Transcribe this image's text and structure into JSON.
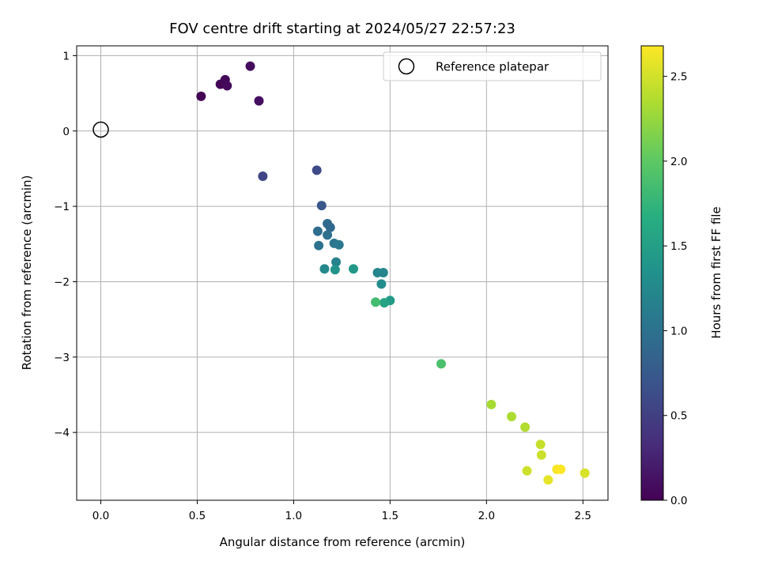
{
  "chart_data": {
    "type": "scatter",
    "title": "FOV centre drift starting at 2024/05/27 22:57:23",
    "xlabel": "Angular distance from reference (arcmin)",
    "ylabel": "Rotation from reference (arcmin)",
    "xlim": [
      -0.125,
      2.63
    ],
    "ylim": [
      -4.9,
      1.13
    ],
    "xticks": [
      0.0,
      0.5,
      1.0,
      1.5,
      2.0,
      2.5
    ],
    "xtick_labels": [
      "0.0",
      "0.5",
      "1.0",
      "1.5",
      "2.0",
      "2.5"
    ],
    "yticks": [
      1,
      0,
      -1,
      -2,
      -3,
      -4
    ],
    "ytick_labels": [
      "1",
      "0",
      "−1",
      "−2",
      "−3",
      "−4"
    ],
    "grid": true,
    "legend": {
      "position": "top-right",
      "entries": [
        "Reference platepar"
      ]
    },
    "reference_point": {
      "x": 0.0,
      "y": 0.0,
      "label": "Reference platepar"
    },
    "colorbar": {
      "label": "Hours from first FF file",
      "min": 0.0,
      "max": 2.68,
      "colormap": "viridis",
      "ticks": [
        0.0,
        0.5,
        1.0,
        1.5,
        2.0,
        2.5
      ],
      "tick_labels": [
        "0.0",
        "0.5",
        "1.0",
        "1.5",
        "2.0",
        "2.5"
      ]
    },
    "points": [
      {
        "x": 0.52,
        "y": 0.46,
        "c": 0.0
      },
      {
        "x": 0.62,
        "y": 0.62,
        "c": 0.03
      },
      {
        "x": 0.645,
        "y": 0.68,
        "c": 0.05
      },
      {
        "x": 0.655,
        "y": 0.6,
        "c": 0.06
      },
      {
        "x": 0.775,
        "y": 0.86,
        "c": 0.08
      },
      {
        "x": 0.82,
        "y": 0.4,
        "c": 0.1
      },
      {
        "x": 0.84,
        "y": -0.6,
        "c": 0.55
      },
      {
        "x": 1.12,
        "y": -0.52,
        "c": 0.6
      },
      {
        "x": 1.145,
        "y": -0.99,
        "c": 0.72
      },
      {
        "x": 1.125,
        "y": -1.33,
        "c": 0.95
      },
      {
        "x": 1.13,
        "y": -1.52,
        "c": 1.0
      },
      {
        "x": 1.175,
        "y": -1.23,
        "c": 0.92
      },
      {
        "x": 1.19,
        "y": -1.28,
        "c": 0.9
      },
      {
        "x": 1.175,
        "y": -1.38,
        "c": 0.98
      },
      {
        "x": 1.21,
        "y": -1.49,
        "c": 1.05
      },
      {
        "x": 1.235,
        "y": -1.51,
        "c": 1.08
      },
      {
        "x": 1.22,
        "y": -1.74,
        "c": 1.18
      },
      {
        "x": 1.16,
        "y": -1.83,
        "c": 1.25
      },
      {
        "x": 1.215,
        "y": -1.84,
        "c": 1.38
      },
      {
        "x": 1.31,
        "y": -1.83,
        "c": 1.42
      },
      {
        "x": 1.435,
        "y": -1.88,
        "c": 1.22
      },
      {
        "x": 1.465,
        "y": -1.88,
        "c": 1.2
      },
      {
        "x": 1.455,
        "y": -2.03,
        "c": 1.3
      },
      {
        "x": 1.5,
        "y": -2.25,
        "c": 1.45
      },
      {
        "x": 1.47,
        "y": -2.28,
        "c": 1.55
      },
      {
        "x": 1.425,
        "y": -2.27,
        "c": 1.85
      },
      {
        "x": 1.765,
        "y": -3.09,
        "c": 1.9
      },
      {
        "x": 2.025,
        "y": -3.63,
        "c": 2.32
      },
      {
        "x": 2.13,
        "y": -3.79,
        "c": 2.34
      },
      {
        "x": 2.2,
        "y": -3.93,
        "c": 2.36
      },
      {
        "x": 2.28,
        "y": -4.16,
        "c": 2.45
      },
      {
        "x": 2.285,
        "y": -4.3,
        "c": 2.47
      },
      {
        "x": 2.21,
        "y": -4.51,
        "c": 2.48
      },
      {
        "x": 2.32,
        "y": -4.63,
        "c": 2.58
      },
      {
        "x": 2.365,
        "y": -4.49,
        "c": 2.66
      },
      {
        "x": 2.385,
        "y": -4.49,
        "c": 2.68
      },
      {
        "x": 2.51,
        "y": -4.54,
        "c": 2.52
      }
    ]
  }
}
